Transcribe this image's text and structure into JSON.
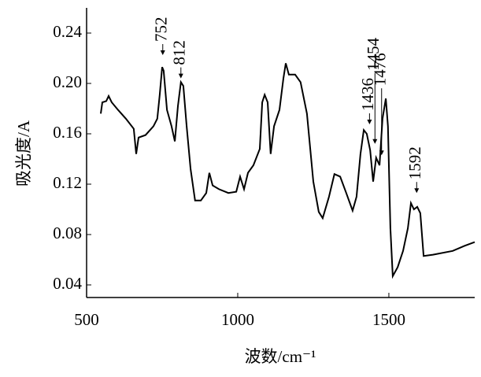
{
  "chart_data": {
    "type": "line",
    "x_label": "波数/cm⁻¹",
    "y_label": "吸光度/A",
    "x": [
      547,
      552,
      565,
      573,
      583,
      604,
      630,
      656,
      664,
      672,
      695,
      721,
      734,
      742,
      750,
      755,
      766,
      781,
      792,
      802,
      812,
      820,
      831,
      844,
      859,
      878,
      896,
      906,
      917,
      938,
      969,
      995,
      1008,
      1021,
      1034,
      1052,
      1073,
      1081,
      1089,
      1099,
      1109,
      1120,
      1138,
      1151,
      1159,
      1169,
      1190,
      1208,
      1229,
      1250,
      1268,
      1281,
      1302,
      1320,
      1339,
      1359,
      1380,
      1393,
      1406,
      1417,
      1427,
      1438,
      1448,
      1458,
      1469,
      1479,
      1490,
      1497,
      1505,
      1513,
      1529,
      1547,
      1563,
      1573,
      1583,
      1594,
      1604,
      1615,
      1646,
      1711,
      1750,
      1784
    ],
    "series": [
      {
        "color": "#000000",
        "values": [
          0.176,
          0.185,
          0.186,
          0.19,
          0.185,
          0.179,
          0.172,
          0.164,
          0.144,
          0.157,
          0.159,
          0.166,
          0.172,
          0.191,
          0.213,
          0.21,
          0.179,
          0.166,
          0.154,
          0.182,
          0.201,
          0.198,
          0.166,
          0.132,
          0.107,
          0.107,
          0.113,
          0.129,
          0.119,
          0.116,
          0.113,
          0.114,
          0.126,
          0.116,
          0.129,
          0.135,
          0.148,
          0.185,
          0.191,
          0.185,
          0.144,
          0.166,
          0.179,
          0.204,
          0.216,
          0.207,
          0.207,
          0.201,
          0.176,
          0.122,
          0.098,
          0.093,
          0.11,
          0.128,
          0.126,
          0.113,
          0.099,
          0.11,
          0.144,
          0.163,
          0.16,
          0.147,
          0.122,
          0.141,
          0.135,
          0.172,
          0.188,
          0.166,
          0.085,
          0.047,
          0.054,
          0.067,
          0.085,
          0.105,
          0.1,
          0.102,
          0.097,
          0.063,
          0.064,
          0.067,
          0.071,
          0.074
        ]
      }
    ],
    "annotations": [
      {
        "label": "752",
        "x": 752,
        "y": 0.2225
      },
      {
        "label": "812",
        "x": 812,
        "y": 0.204
      },
      {
        "label": "1436",
        "x": 1436,
        "y": 0.1675
      },
      {
        "label": "1454",
        "x": 1454,
        "y": 0.152
      },
      {
        "label": "1476",
        "x": 1476,
        "y": 0.143
      },
      {
        "label": "1592",
        "x": 1592,
        "y": 0.113
      }
    ],
    "xlim": [
      500,
      1784
    ],
    "ylim": [
      0.03,
      0.26
    ],
    "xticks": [
      500,
      1000,
      1500
    ],
    "yticks": [
      0.04,
      0.08,
      0.12,
      0.16,
      {
        "value": 0.2,
        "label": "0.20"
      },
      0.24
    ]
  }
}
